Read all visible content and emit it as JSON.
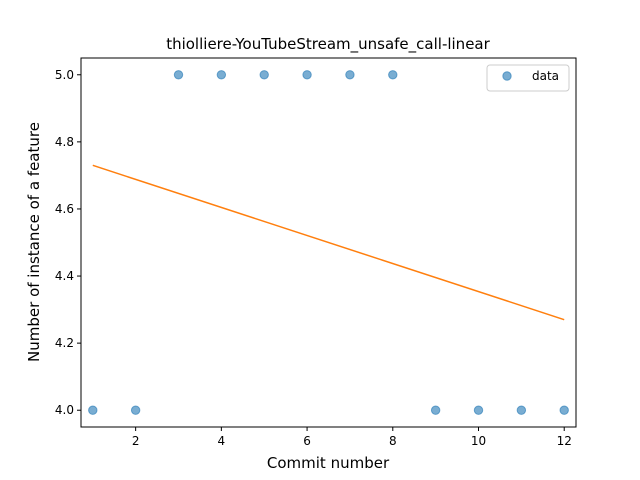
{
  "chart_data": {
    "type": "scatter",
    "title": "thiolliere-YouTubeStream_unsafe_call-linear",
    "xlabel": "Commit number",
    "ylabel": "Number of instance of a feature",
    "xlim": [
      0.725,
      12.275
    ],
    "ylim": [
      3.95,
      5.05
    ],
    "xticks": [
      2,
      4,
      6,
      8,
      10,
      12
    ],
    "yticks": [
      4.0,
      4.2,
      4.4,
      4.6,
      4.8,
      5.0
    ],
    "xtick_labels": [
      "2",
      "4",
      "6",
      "8",
      "10",
      "12"
    ],
    "ytick_labels": [
      "4.0",
      "4.2",
      "4.4",
      "4.6",
      "4.8",
      "5.0"
    ],
    "legend_position": "top-right",
    "grid": false,
    "series": [
      {
        "name": "data",
        "kind": "scatter",
        "color": "#1f77b4",
        "x": [
          1,
          2,
          3,
          4,
          5,
          6,
          7,
          8,
          9,
          10,
          11,
          12
        ],
        "y": [
          4,
          4,
          5,
          5,
          5,
          5,
          5,
          5,
          4,
          4,
          4,
          4
        ]
      },
      {
        "kind": "line",
        "color": "#ff7f0e",
        "x": [
          1,
          12
        ],
        "y": [
          4.73,
          4.27
        ]
      }
    ]
  }
}
